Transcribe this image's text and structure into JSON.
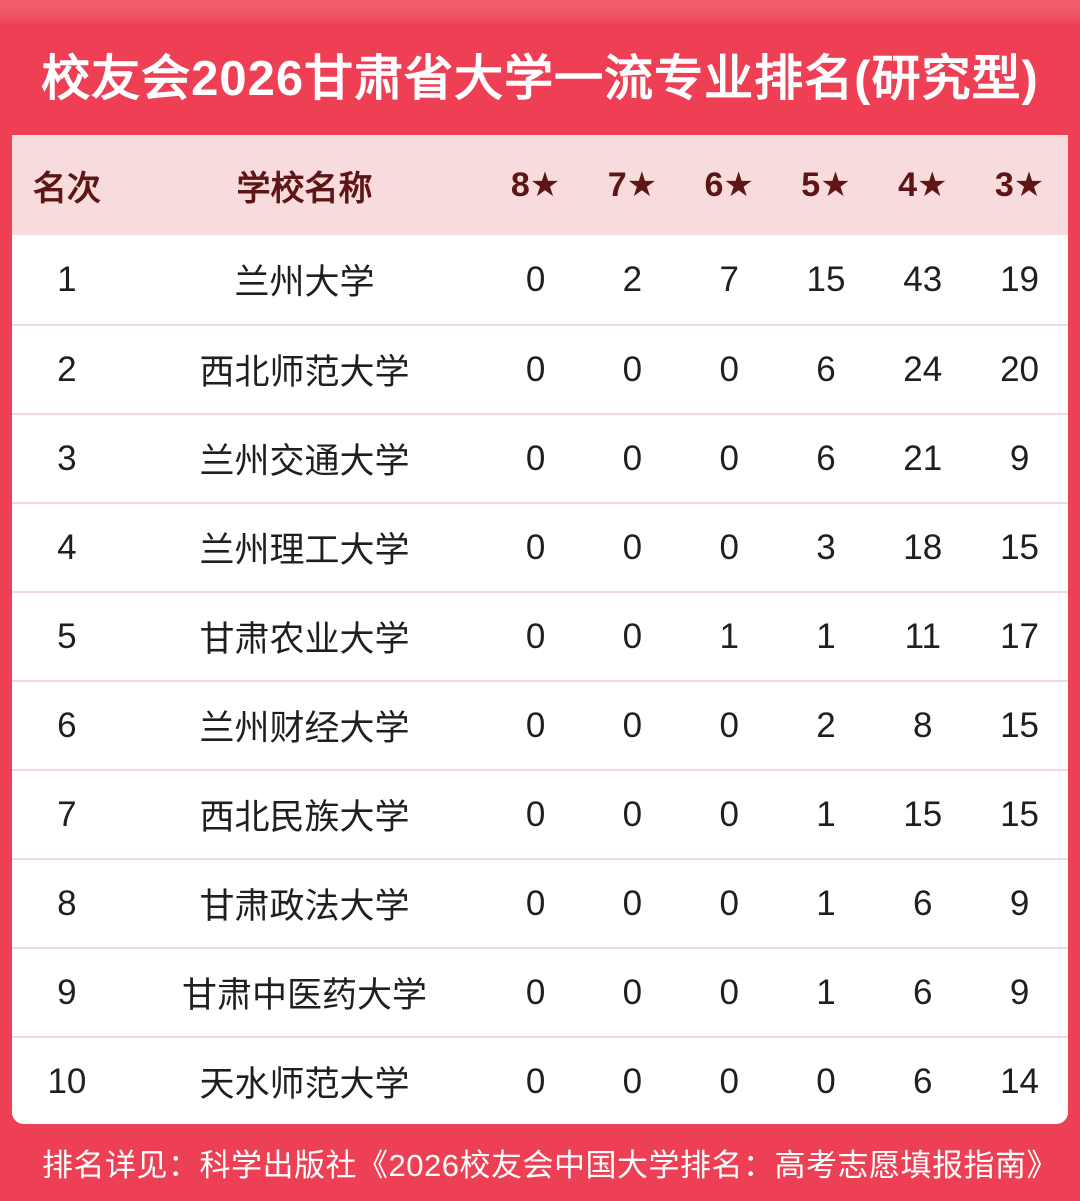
{
  "title_banner": {
    "text": "校友会2026甘肃省大学一流专业排名(研究型)"
  },
  "footer": {
    "text": "排名详见：科学出版社《2026校友会中国大学排名：高考志愿填报指南》"
  },
  "colors": {
    "brand_red": "#ee4054",
    "brand_red_light": "#f15c6c",
    "header_pink": "#f8dcdd",
    "header_text_maroon": "#5e1515",
    "row_divider_pink": "#f1dada",
    "body_text": "#1f1f1f",
    "card_white": "#ffffff"
  },
  "chart_data": {
    "type": "table",
    "title": "校友会2026甘肃省大学一流专业排名(研究型)",
    "columns": [
      "名次",
      "学校名称",
      "8★",
      "7★",
      "6★",
      "5★",
      "4★",
      "3★"
    ],
    "rows": [
      [
        "1",
        "兰州大学",
        "0",
        "2",
        "7",
        "15",
        "43",
        "19"
      ],
      [
        "2",
        "西北师范大学",
        "0",
        "0",
        "0",
        "6",
        "24",
        "20"
      ],
      [
        "3",
        "兰州交通大学",
        "0",
        "0",
        "0",
        "6",
        "21",
        "9"
      ],
      [
        "4",
        "兰州理工大学",
        "0",
        "0",
        "0",
        "3",
        "18",
        "15"
      ],
      [
        "5",
        "甘肃农业大学",
        "0",
        "0",
        "1",
        "1",
        "11",
        "17"
      ],
      [
        "6",
        "兰州财经大学",
        "0",
        "0",
        "0",
        "2",
        "8",
        "15"
      ],
      [
        "7",
        "西北民族大学",
        "0",
        "0",
        "0",
        "1",
        "15",
        "15"
      ],
      [
        "8",
        "甘肃政法大学",
        "0",
        "0",
        "0",
        "1",
        "6",
        "9"
      ],
      [
        "9",
        "甘肃中医药大学",
        "0",
        "0",
        "0",
        "1",
        "6",
        "9"
      ],
      [
        "10",
        "天水师范大学",
        "0",
        "0",
        "0",
        "0",
        "6",
        "14"
      ]
    ],
    "footnote": "排名详见：科学出版社《2026校友会中国大学排名：高考志愿填报指南》",
    "layout": {
      "header_row": true,
      "striped": false,
      "grid": "horizontal-dividers"
    }
  }
}
